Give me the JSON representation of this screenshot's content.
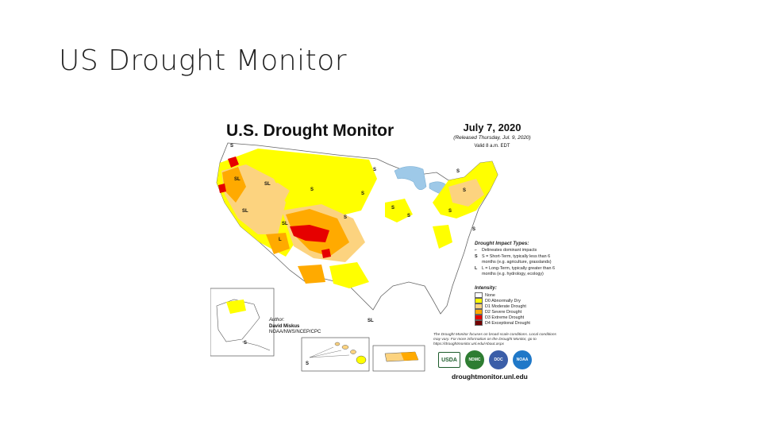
{
  "slide": {
    "title": "US Drought Monitor"
  },
  "map": {
    "title": "U.S. Drought Monitor",
    "date": "July 7, 2020",
    "released": "(Released Thursday, Jul. 9, 2020)",
    "valid": "Valid 8 a.m. EDT",
    "impact_types": {
      "title": "Drought Impact Types:",
      "items": [
        {
          "key": "⌐",
          "text": "Delineates dominant impacts"
        },
        {
          "key": "S",
          "text": "S = Short-Term, typically less than 6 months (e.g. agriculture, grasslands)"
        },
        {
          "key": "L",
          "text": "L = Long-Term, typically greater than 6 months (e.g. hydrology, ecology)"
        }
      ]
    },
    "legend": {
      "title": "Intensity:",
      "items": [
        {
          "label": "None",
          "color": "#ffffff"
        },
        {
          "label": "D0 Abnormally Dry",
          "color": "#ffff00"
        },
        {
          "label": "D1 Moderate Drought",
          "color": "#fcd37f"
        },
        {
          "label": "D2 Severe Drought",
          "color": "#ffaa00"
        },
        {
          "label": "D3 Extreme Drought",
          "color": "#e60000"
        },
        {
          "label": "D4 Exceptional Drought",
          "color": "#730000"
        }
      ]
    },
    "disclaimer": "The Drought Monitor focuses on broad-scale conditions. Local conditions may vary. For more information on the Drought Monitor, go to https://droughtmonitor.unl.edu/About.aspx",
    "author": {
      "label": "Author:",
      "name": "David Miskus",
      "org": "NOAA/NWS/NCEP/CPC"
    },
    "logos": [
      "USDA",
      "NDMC",
      "DOC",
      "NOAA"
    ],
    "url": "droughtmonitor.unl.edu",
    "impact_labels": [
      "S",
      "SL",
      "SL",
      "S",
      "S",
      "SL",
      "SL",
      "S",
      "S",
      "S",
      "S",
      "S",
      "S",
      "S",
      "S",
      "L",
      "SL",
      "S",
      "S"
    ]
  }
}
